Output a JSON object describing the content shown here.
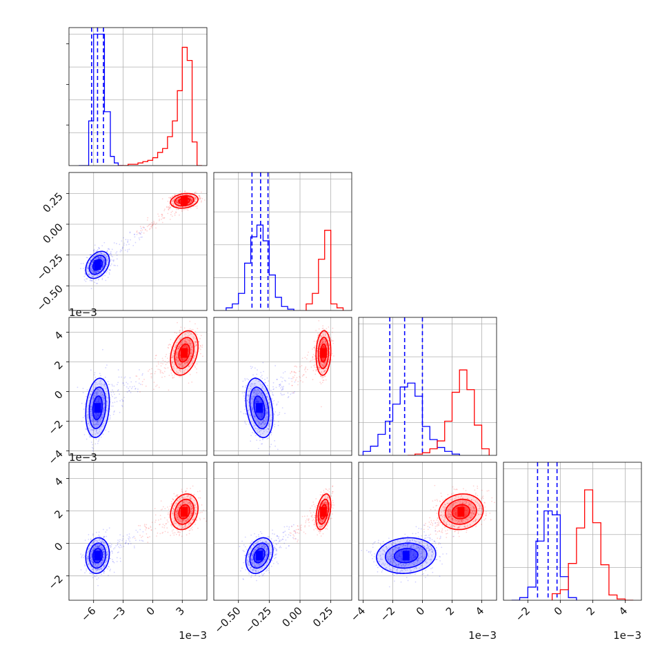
{
  "chart_data": {
    "type": "corner",
    "colors": {
      "blue": "#0000ff",
      "red": "#ff0000",
      "grid": "#b0b0b0"
    },
    "params": [
      {
        "lim": [
          -8.5,
          5.5
        ],
        "ticks": [
          -6,
          -3,
          0,
          3
        ],
        "tick_labels": [
          "−6",
          "−3",
          "0",
          "3"
        ],
        "scale_label": "1e−3"
      },
      {
        "lim": [
          -0.7,
          0.42
        ],
        "ticks": [
          -0.5,
          -0.25,
          0.0,
          0.25
        ],
        "tick_labels": [
          "−0.50",
          "−0.25",
          "0.00",
          "0.25"
        ],
        "scale_label": ""
      },
      {
        "lim": [
          -4.3,
          5.0
        ],
        "ticks": [
          -4,
          -2,
          0,
          2,
          4
        ],
        "tick_labels": [
          "−4",
          "−2",
          "0",
          "2",
          "4"
        ],
        "scale_label": "1e−3"
      },
      {
        "lim": [
          -3.5,
          5.0
        ],
        "ticks": [
          -2,
          0,
          2,
          4
        ],
        "tick_labels": [
          "−2",
          "0",
          "2",
          "4"
        ],
        "scale_label": "1e−3"
      }
    ],
    "series": [
      {
        "color": "#0000ff",
        "means": [
          -5.6,
          -0.33,
          -1.1,
          -0.75
        ],
        "sds": [
          0.6,
          0.055,
          1.0,
          0.55
        ],
        "corr": [
          [
            1,
            0.35,
            0.2,
            0.1
          ],
          [
            0.35,
            1,
            -0.3,
            0.3
          ],
          [
            0.2,
            -0.3,
            1,
            0.1
          ],
          [
            0.1,
            0.3,
            0.1,
            1
          ]
        ],
        "quantiles": [
          [
            -6.2,
            -5.6,
            -5.0
          ],
          [
            -0.39,
            -0.32,
            -0.26
          ],
          [
            -2.2,
            -1.2,
            0.0
          ],
          [
            -1.4,
            -0.75,
            -0.2
          ]
        ],
        "hist": [
          {
            "edges": [
              -7.5,
              -6.5,
              -6.0,
              -5.5,
              -4.9,
              -4.3,
              -3.9,
              -3.5,
              -3.0
            ],
            "counts": [
              0,
              0.34,
              1.0,
              1.0,
              0.41,
              0.07,
              0.02,
              0.0
            ]
          },
          {
            "edges": [
              -0.6,
              -0.55,
              -0.5,
              -0.45,
              -0.4,
              -0.35,
              -0.3,
              -0.25,
              -0.2,
              -0.15,
              -0.1,
              -0.05
            ],
            "counts": [
              0.02,
              0.05,
              0.13,
              0.36,
              0.56,
              0.65,
              0.53,
              0.27,
              0.1,
              0.03,
              0.01
            ]
          },
          {
            "edges": [
              -4,
              -3.5,
              -3,
              -2.5,
              -2,
              -1.5,
              -1,
              -0.5,
              0,
              0.5,
              1,
              1.5,
              2,
              2.5
            ],
            "counts": [
              0.03,
              0.07,
              0.16,
              0.26,
              0.39,
              0.52,
              0.55,
              0.45,
              0.22,
              0.12,
              0.06,
              0.03,
              0.01
            ]
          },
          {
            "edges": [
              -3,
              -2.5,
              -2,
              -1.5,
              -1,
              -0.5,
              0,
              0.5,
              1
            ],
            "counts": [
              0.0,
              0.02,
              0.1,
              0.45,
              0.68,
              0.65,
              0.18,
              0.02
            ]
          }
        ]
      },
      {
        "color": "#ff0000",
        "means": [
          3.2,
          0.19,
          2.6,
          1.95
        ],
        "sds": [
          0.7,
          0.03,
          0.75,
          0.55
        ],
        "corr": [
          [
            1,
            0.2,
            0.3,
            0.2
          ],
          [
            0.2,
            1,
            0.1,
            0.4
          ],
          [
            0.3,
            0.1,
            1,
            0.1
          ],
          [
            0.2,
            0.4,
            0.1,
            1
          ]
        ],
        "quantiles": null,
        "hist": [
          {
            "edges": [
              -3.5,
              -3,
              -2.5,
              -2,
              -1.5,
              -1,
              -0.5,
              0,
              0.5,
              1,
              1.5,
              2,
              2.5,
              3,
              3.5,
              4,
              4.5,
              5
            ],
            "counts": [
              0.0,
              0.0,
              0.01,
              0.01,
              0.02,
              0.03,
              0.04,
              0.06,
              0.1,
              0.13,
              0.22,
              0.34,
              0.57,
              0.9,
              0.8,
              0.18,
              0.0
            ]
          },
          {
            "edges": [
              0.05,
              0.1,
              0.15,
              0.2,
              0.25,
              0.3,
              0.35
            ],
            "counts": [
              0.05,
              0.13,
              0.39,
              0.61,
              0.05,
              0.02
            ]
          },
          {
            "edges": [
              -1,
              -0.5,
              0,
              0.5,
              1,
              1.5,
              2,
              2.5,
              3,
              3.5,
              4,
              4.5
            ],
            "counts": [
              0.0,
              0.01,
              0.02,
              0.05,
              0.11,
              0.26,
              0.48,
              0.65,
              0.5,
              0.23,
              0.05
            ]
          },
          {
            "edges": [
              -0.5,
              0,
              0.5,
              1,
              1.5,
              2,
              2.5,
              3,
              3.5,
              4,
              4.5
            ],
            "counts": [
              0.05,
              0.08,
              0.28,
              0.55,
              0.84,
              0.59,
              0.27,
              0.04,
              0.01,
              0.0
            ]
          }
        ]
      }
    ],
    "hist1_ylim": [
      0,
      1.05
    ]
  }
}
